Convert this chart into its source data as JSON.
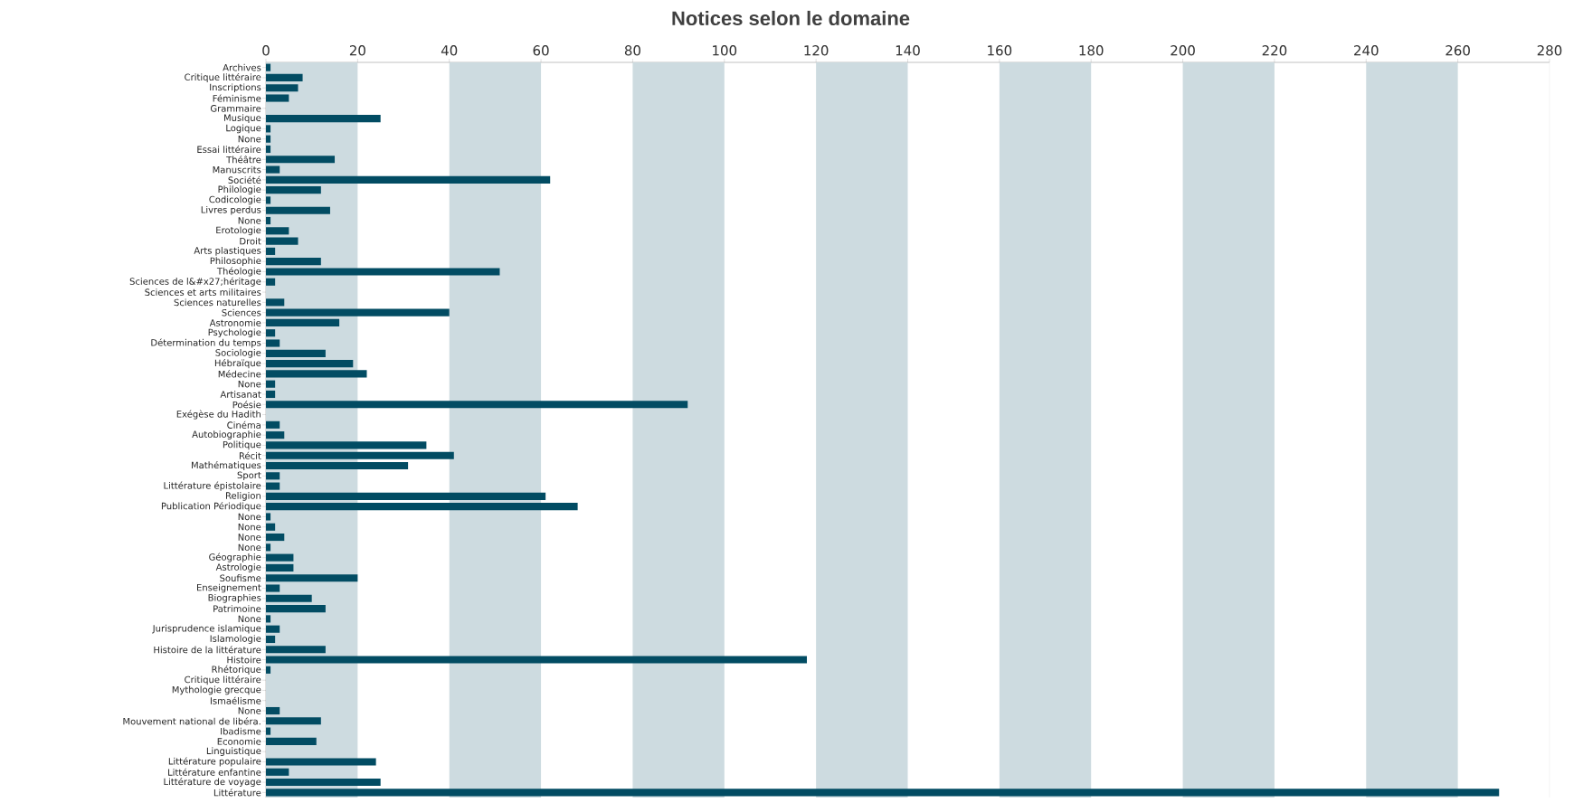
{
  "chart_data": {
    "type": "bar",
    "orientation": "horizontal",
    "title": "Notices selon le domaine",
    "categories": [
      "Archives",
      "Critique littéraire",
      "Inscriptions",
      "Féminisme",
      "Grammaire",
      "Musique",
      "Logique",
      "None",
      "Essai littéraire",
      "Théâtre",
      "Manuscrits",
      "Société",
      "Philologie",
      "Codicologie",
      "Livres perdus",
      "None",
      "Erotologie",
      "Droit",
      "Arts plastiques",
      "Philosophie",
      "Théologie",
      "Sciences de l&#x27;héritage",
      "Sciences et arts militaires",
      "Sciences naturelles",
      "Sciences",
      "Astronomie",
      "Psychologie",
      "Détermination du temps",
      "Sociologie",
      "Hébraïque",
      "Médecine",
      "None",
      "Artisanat",
      "Poésie",
      "Exégèse du Hadith",
      "Cinéma",
      "Autobiographie",
      "Politique",
      "Récit",
      "Mathématiques",
      "Sport",
      "Littérature épistolaire",
      "Religion",
      "Publication Périodique",
      "None",
      "None",
      "None",
      "None",
      "Géographie",
      "Astrologie",
      "Soufisme",
      "Enseignement",
      "Biographies",
      "Patrimoine",
      "None",
      "Jurisprudence islamique",
      "Islamologie",
      "Histoire de la littérature",
      "Histoire",
      "Rhétorique",
      "Critique littéraire",
      "Mythologie grecque",
      "Ismaélisme",
      "None",
      "Mouvement national de libéra.",
      "Ibadisme",
      "Economie",
      "Linguistique",
      "Littérature populaire",
      "Littérature enfantine",
      "Littérature de voyage",
      "Littérature"
    ],
    "values": [
      1,
      8,
      7,
      5,
      0,
      25,
      1,
      1,
      1,
      15,
      3,
      62,
      12,
      1,
      14,
      1,
      5,
      7,
      2,
      12,
      51,
      2,
      0,
      4,
      40,
      16,
      2,
      3,
      13,
      19,
      22,
      2,
      2,
      92,
      0,
      3,
      4,
      35,
      41,
      31,
      3,
      3,
      61,
      68,
      1,
      2,
      4,
      1,
      6,
      6,
      20,
      3,
      10,
      13,
      1,
      3,
      2,
      13,
      118,
      1,
      0,
      0,
      0,
      3,
      12,
      1,
      11,
      0,
      24,
      5,
      25,
      269
    ],
    "color": "#024c63",
    "xlim": [
      0,
      280
    ],
    "xticks": [
      0,
      20,
      40,
      60,
      80,
      100,
      120,
      140,
      160,
      180,
      200,
      220,
      240,
      260,
      280
    ],
    "bands": [
      {
        "axis": "x",
        "from": 0,
        "to": 20,
        "color": "#cddbe0"
      },
      {
        "axis": "x",
        "from": 40,
        "to": 60,
        "color": "#cddbe0"
      },
      {
        "axis": "x",
        "from": 80,
        "to": 100,
        "color": "#cddbe0"
      },
      {
        "axis": "x",
        "from": 120,
        "to": 140,
        "color": "#cddbe0"
      },
      {
        "axis": "x",
        "from": 160,
        "to": 180,
        "color": "#cddbe0"
      },
      {
        "axis": "x",
        "from": 200,
        "to": 220,
        "color": "#cddbe0"
      },
      {
        "axis": "x",
        "from": 240,
        "to": 260,
        "color": "#cddbe0"
      }
    ]
  }
}
